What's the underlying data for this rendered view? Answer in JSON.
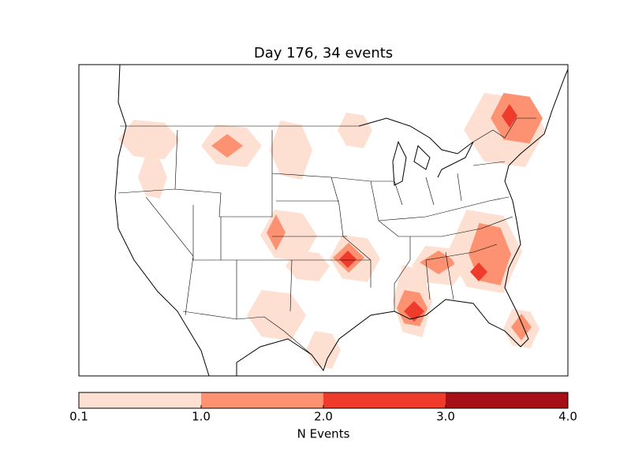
{
  "chart_data": {
    "type": "contour-map",
    "title": "Day 176, 34 events",
    "colorbar": {
      "label": "N Events",
      "ticks": [
        0.1,
        {
          "value": 1,
          "label": "1.0"
        },
        {
          "value": 2,
          "label": "2.0"
        },
        {
          "value": 3,
          "label": "3.0"
        },
        {
          "value": 4,
          "label": "4.0"
        }
      ],
      "colors": [
        "#fee0d2",
        "#fc9272",
        "#ef3b2c",
        "#a50f15"
      ]
    }
  }
}
